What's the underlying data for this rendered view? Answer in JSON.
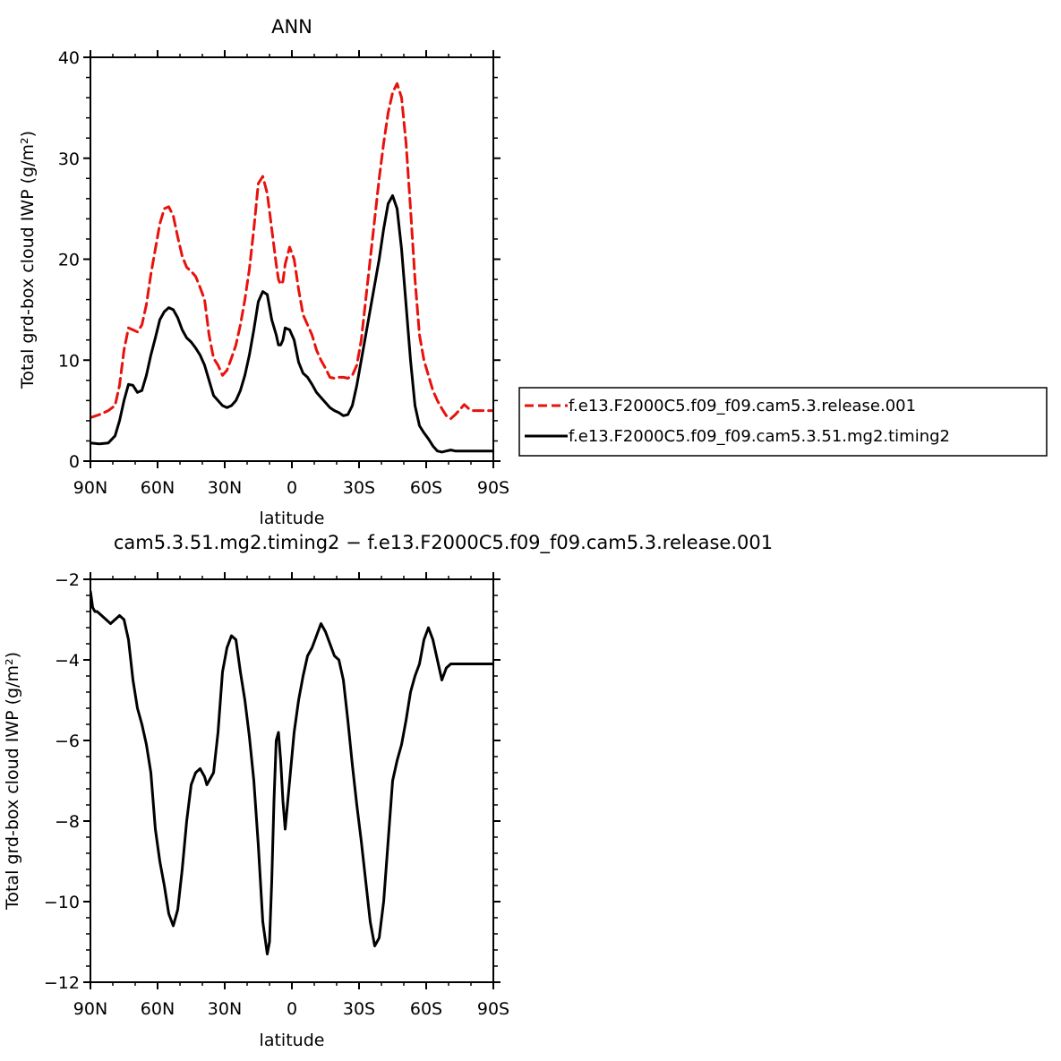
{
  "chart_data": [
    {
      "type": "line",
      "title": "ANN",
      "xlabel": "latitude",
      "ylabel": "Total grd-box cloud IWP (g/m²)",
      "xlim": [
        90,
        -90
      ],
      "ylim": [
        0,
        40
      ],
      "x_tick_values": [
        90,
        60,
        30,
        0,
        -30,
        -60,
        -90
      ],
      "x_tick_labels": [
        "90N",
        "60N",
        "30N",
        "0",
        "30S",
        "60S",
        "90S"
      ],
      "y_tick_values": [
        0,
        10,
        20,
        30,
        40
      ],
      "y_tick_labels": [
        "0",
        "10",
        "20",
        "30",
        "40"
      ],
      "legend": {
        "placement": "right"
      },
      "series": [
        {
          "name": "f.e13.F2000C5.f09_f09.cam5.3.release.001",
          "color": "#e8120c",
          "style": "dashed",
          "x": [
            90,
            86,
            82,
            79,
            77,
            75,
            73,
            71,
            69,
            67,
            65,
            63,
            61,
            59,
            57,
            55,
            53,
            51,
            49,
            47,
            45,
            43,
            41,
            39,
            37,
            35,
            33,
            31,
            29,
            27,
            25,
            23,
            21,
            19,
            17,
            15,
            13,
            11,
            9,
            7,
            6,
            5,
            4,
            3,
            1,
            -1,
            -3,
            -5,
            -7,
            -9,
            -11,
            -13,
            -15,
            -17,
            -19,
            -21,
            -23,
            -25,
            -27,
            -29,
            -31,
            -33,
            -35,
            -37,
            -39,
            -41,
            -43,
            -45,
            -47,
            -49,
            -51,
            -53,
            -55,
            -57,
            -59,
            -61,
            -63,
            -65,
            -67,
            -69,
            -71,
            -73,
            -75,
            -77,
            -79,
            -81,
            -83,
            -85,
            -87,
            -88,
            -89,
            -90
          ],
          "values": [
            4.3,
            4.6,
            5.0,
            5.5,
            7.5,
            11.0,
            13.2,
            13.0,
            12.8,
            13.5,
            15.5,
            18.5,
            21.0,
            23.5,
            25.0,
            25.2,
            24.3,
            22.2,
            20.3,
            19.2,
            18.8,
            18.3,
            17.2,
            16.0,
            12.5,
            10.2,
            9.5,
            8.5,
            9.0,
            10.2,
            11.5,
            13.5,
            16.0,
            19.0,
            23.0,
            27.5,
            28.2,
            26.5,
            23.0,
            19.5,
            18.0,
            17.5,
            17.8,
            19.5,
            21.2,
            20.0,
            17.0,
            14.5,
            13.5,
            12.5,
            11.0,
            10.0,
            9.2,
            8.3,
            8.2,
            8.3,
            8.3,
            8.2,
            8.5,
            9.5,
            12.0,
            16.0,
            20.0,
            24.0,
            28.0,
            31.5,
            34.5,
            36.5,
            37.4,
            36.0,
            31.5,
            25.0,
            18.0,
            12.5,
            10.0,
            8.5,
            7.0,
            6.0,
            5.2,
            4.5,
            4.2,
            4.6,
            5.1,
            5.6,
            5.2,
            5.0,
            5.0,
            5.0,
            5.0,
            5.0,
            5.0,
            5.0
          ]
        },
        {
          "name": "f.e13.F2000C5.f09_f09.cam5.3.51.mg2.timing2",
          "color": "#000000",
          "style": "solid",
          "x": [
            90,
            86,
            82,
            79,
            77,
            75,
            73,
            71,
            69,
            67,
            65,
            63,
            61,
            59,
            57,
            55,
            53,
            51,
            49,
            47,
            45,
            43,
            41,
            39,
            37,
            35,
            33,
            31,
            29,
            27,
            25,
            23,
            21,
            19,
            17,
            15,
            13,
            11,
            9,
            7,
            6,
            5,
            4,
            3,
            1,
            -1,
            -3,
            -5,
            -7,
            -9,
            -11,
            -13,
            -15,
            -17,
            -19,
            -21,
            -23,
            -25,
            -27,
            -29,
            -31,
            -33,
            -35,
            -37,
            -39,
            -41,
            -43,
            -45,
            -47,
            -49,
            -51,
            -53,
            -55,
            -57,
            -59,
            -61,
            -63,
            -65,
            -67,
            -69,
            -71,
            -73,
            -75,
            -77,
            -79,
            -81,
            -83,
            -85,
            -87,
            -88,
            -89,
            -90
          ],
          "values": [
            1.8,
            1.7,
            1.8,
            2.5,
            4.0,
            6.0,
            7.6,
            7.5,
            6.8,
            7.0,
            8.5,
            10.5,
            12.2,
            14.0,
            14.8,
            15.2,
            15.0,
            14.2,
            13.0,
            12.2,
            11.8,
            11.2,
            10.5,
            9.5,
            8.0,
            6.5,
            6.0,
            5.5,
            5.3,
            5.5,
            6.0,
            7.0,
            8.5,
            10.5,
            13.0,
            15.8,
            16.8,
            16.5,
            14.0,
            12.5,
            11.5,
            11.5,
            12.0,
            13.2,
            13.0,
            12.0,
            9.8,
            8.7,
            8.3,
            7.6,
            6.8,
            6.3,
            5.8,
            5.3,
            5.0,
            4.8,
            4.5,
            4.6,
            5.5,
            7.5,
            10.0,
            12.5,
            15.0,
            17.5,
            20.0,
            23.0,
            25.5,
            26.3,
            25.0,
            21.0,
            15.5,
            10.0,
            5.5,
            3.5,
            2.8,
            2.2,
            1.5,
            1.0,
            0.9,
            1.0,
            1.1,
            1.0,
            1.0,
            1.0,
            1.0,
            1.0,
            1.0,
            1.0,
            1.0,
            1.0,
            1.0,
            1.0
          ]
        }
      ]
    },
    {
      "type": "line",
      "title": "cam5.3.51.mg2.timing2 − f.e13.F2000C5.f09_f09.cam5.3.release.001",
      "xlabel": "latitude",
      "ylabel": "Total grd-box cloud IWP (g/m²)",
      "xlim": [
        90,
        -90
      ],
      "ylim": [
        -12,
        -2
      ],
      "x_tick_values": [
        90,
        60,
        30,
        0,
        -30,
        -60,
        -90
      ],
      "x_tick_labels": [
        "90N",
        "60N",
        "30N",
        "0",
        "30S",
        "60S",
        "90S"
      ],
      "y_tick_values": [
        -2,
        -4,
        -6,
        -8,
        -10,
        -12
      ],
      "y_tick_labels": [
        "−2",
        "−4",
        "−6",
        "−8",
        "−10",
        "−12"
      ],
      "series": [
        {
          "color": "#000000",
          "style": "solid",
          "x": [
            90,
            89.5,
            89,
            88,
            87,
            85,
            83,
            81,
            79,
            77,
            75,
            73,
            71,
            69,
            67,
            65,
            63,
            62,
            61,
            59,
            57,
            55,
            53,
            51,
            49,
            47,
            45,
            43,
            41,
            39,
            38,
            37,
            35,
            33,
            31,
            29,
            27,
            25,
            23,
            21,
            19,
            17,
            15,
            13,
            11,
            10,
            9,
            8,
            7,
            6,
            5,
            4,
            3,
            1,
            -1,
            -3,
            -5,
            -7,
            -9,
            -11,
            -13,
            -15,
            -17,
            -19,
            -21,
            -23,
            -25,
            -27,
            -29,
            -31,
            -33,
            -35,
            -37,
            -39,
            -41,
            -43,
            -45,
            -47,
            -49,
            -51,
            -53,
            -55,
            -57,
            -59,
            -61,
            -63,
            -65,
            -67,
            -69,
            -71,
            -73,
            -75,
            -77,
            -79,
            -81,
            -83,
            -85,
            -86,
            -87,
            -88,
            -89,
            -90
          ],
          "values": [
            -2.3,
            -2.5,
            -2.7,
            -2.8,
            -2.8,
            -2.9,
            -3.0,
            -3.1,
            -3.0,
            -2.9,
            -3.0,
            -3.5,
            -4.5,
            -5.2,
            -5.6,
            -6.1,
            -6.8,
            -7.5,
            -8.2,
            -9.0,
            -9.6,
            -10.3,
            -10.6,
            -10.2,
            -9.2,
            -8.0,
            -7.1,
            -6.8,
            -6.7,
            -6.9,
            -7.1,
            -7.0,
            -6.8,
            -5.8,
            -4.3,
            -3.7,
            -3.4,
            -3.5,
            -4.3,
            -5.0,
            -5.9,
            -7.0,
            -8.6,
            -10.5,
            -11.3,
            -11.0,
            -9.5,
            -7.5,
            -6.0,
            -5.8,
            -6.5,
            -7.5,
            -8.2,
            -7.0,
            -5.8,
            -5.0,
            -4.4,
            -3.9,
            -3.7,
            -3.4,
            -3.1,
            -3.3,
            -3.6,
            -3.9,
            -4.0,
            -4.5,
            -5.5,
            -6.6,
            -7.6,
            -8.5,
            -9.5,
            -10.5,
            -11.1,
            -10.9,
            -10.0,
            -8.5,
            -7.0,
            -6.5,
            -6.1,
            -5.5,
            -4.8,
            -4.4,
            -4.1,
            -3.5,
            -3.2,
            -3.5,
            -4.0,
            -4.5,
            -4.2,
            -4.1,
            -4.1,
            -4.1,
            -4.1,
            -4.1,
            -4.1,
            -4.1,
            -4.1,
            -4.1,
            -4.1,
            -4.1,
            -4.1,
            -4.1
          ]
        }
      ]
    }
  ]
}
